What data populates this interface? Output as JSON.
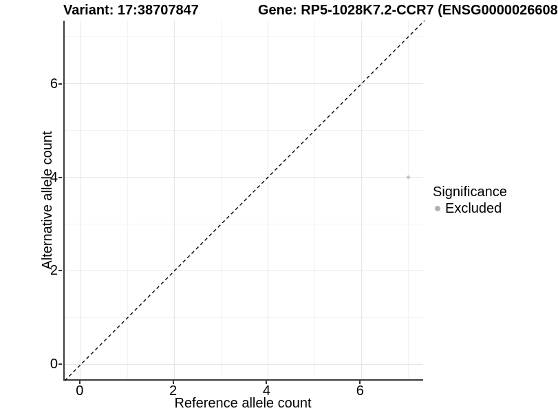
{
  "chart_data": {
    "type": "scatter",
    "titles": {
      "variant": "Variant: 17:38707847",
      "gene": "Gene: RP5-1028K7.2-CCR7 (ENSG0000026608"
    },
    "xlabel": "Reference allele count",
    "ylabel": "Alternative allele count",
    "xlim": [
      -0.35,
      7.35
    ],
    "ylim": [
      -0.35,
      7.35
    ],
    "x_major_ticks": [
      0,
      2,
      4,
      6
    ],
    "y_major_ticks": [
      0,
      2,
      4,
      6
    ],
    "x_minor_gridlines": [
      1,
      3,
      5,
      7
    ],
    "y_minor_gridlines": [
      1,
      3,
      5,
      7
    ],
    "grid": "major+minor",
    "points": [
      {
        "x": 7,
        "y": 4,
        "significance": "Excluded"
      }
    ],
    "point_color": "#c2c2c2",
    "identity_line": {
      "equation": "y = x",
      "style": "dashed",
      "color": "#000000"
    },
    "legend": {
      "title": "Significance",
      "position": "right",
      "items": [
        {
          "label": "Excluded",
          "color": "#b0b0b0",
          "marker": "circle"
        }
      ]
    },
    "colors": {
      "background": "#ffffff",
      "axis_line": "#3a3a3a",
      "tick_mark": "#333333",
      "grid_major": "#e6e6e6",
      "grid_minor": "#f2f2f2",
      "text": "#000000"
    }
  }
}
